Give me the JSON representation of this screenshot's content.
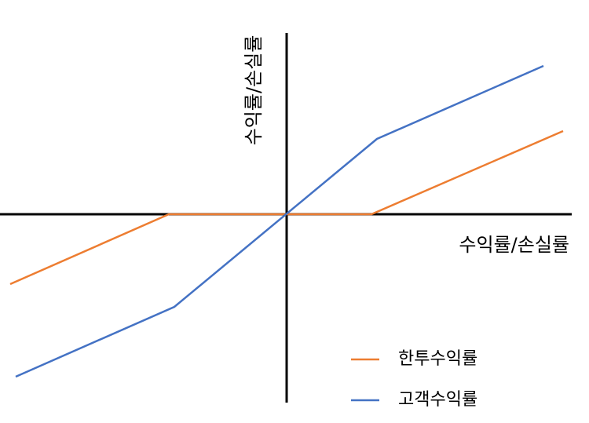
{
  "chart_data": {
    "type": "line",
    "x_label": "수익률/손실률",
    "y_label": "수익률/손실률",
    "xlim": [
      -365,
      363
    ],
    "ylim": [
      -240,
      231
    ],
    "series": [
      {
        "name": "한투수익률",
        "color": "#ed7d31",
        "x": [
          -352,
          -150,
          108,
          352
        ],
        "values": [
          -89,
          0,
          0,
          106
        ]
      },
      {
        "name": "고객수익률",
        "color": "#4472c4",
        "x": [
          -345,
          -143,
          115,
          327
        ],
        "values": [
          -207,
          -118,
          96,
          189
        ]
      }
    ]
  }
}
